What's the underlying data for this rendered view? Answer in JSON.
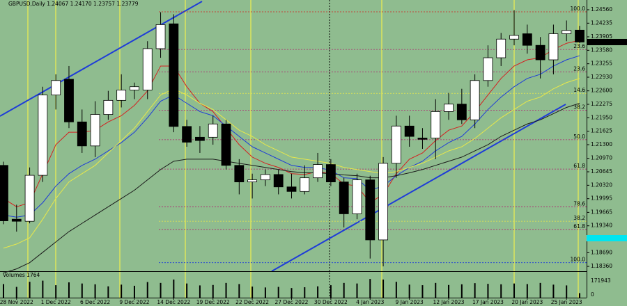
{
  "chart_data": {
    "type": "candlestick",
    "title": "GBPUSD,Daily  1.24067 1.24170 1.23757 1.23779",
    "categories": [
      null,
      "28 Nov 2022",
      null,
      null,
      "1 Dec 2022",
      null,
      null,
      "6 Dec 2022",
      null,
      null,
      "9 Dec 2022",
      null,
      null,
      "14 Dec 2022",
      null,
      null,
      "19 Dec 2022",
      null,
      null,
      "22 Dec 2022",
      null,
      null,
      "27 Dec 2022",
      null,
      null,
      "30 Dec 2022",
      null,
      null,
      "4 Jan 2023",
      null,
      null,
      "9 Jan 2023",
      null,
      null,
      "12 Jan 2023",
      null,
      null,
      "17 Jan 2023",
      null,
      null,
      "20 Jan 2023",
      null,
      null,
      "25 Jan 2023",
      null
    ],
    "open": [
      1.208,
      1.195,
      1.1945,
      1.2056,
      1.225,
      1.2288,
      1.2185,
      1.2127,
      1.2203,
      1.2237,
      1.2262,
      1.2262,
      1.2362,
      1.2422,
      1.2174,
      1.2148,
      1.2148,
      1.218,
      1.208,
      1.204,
      1.2045,
      1.2058,
      1.2028,
      1.2017,
      1.205,
      1.2082,
      1.204,
      1.1963,
      1.2045,
      1.19,
      1.2085,
      1.2175,
      1.2146,
      1.2146,
      1.221,
      1.2228,
      1.219,
      1.2285,
      1.234,
      1.2385,
      1.2398,
      1.237,
      1.2335,
      1.2398,
      1.24067
    ],
    "high": [
      1.2089,
      1.1985,
      1.2075,
      1.227,
      1.23,
      1.232,
      1.2215,
      1.2235,
      1.226,
      1.23,
      1.228,
      1.238,
      1.245,
      1.2445,
      1.219,
      1.2175,
      1.22,
      1.219,
      1.2095,
      1.206,
      1.207,
      1.207,
      1.206,
      1.208,
      1.211,
      1.2095,
      1.205,
      1.206,
      1.2055,
      1.21,
      1.22,
      1.22,
      1.217,
      1.224,
      1.2255,
      1.2265,
      1.23,
      1.237,
      1.24,
      1.2455,
      1.242,
      1.239,
      1.242,
      1.243,
      1.2417
    ],
    "low": [
      1.1938,
      1.192,
      1.194,
      1.204,
      1.2215,
      1.217,
      1.211,
      1.21,
      1.219,
      1.222,
      1.224,
      1.224,
      1.234,
      1.216,
      1.2125,
      1.211,
      1.213,
      1.207,
      1.201,
      1.2,
      1.203,
      1.201,
      1.2,
      1.201,
      1.204,
      1.203,
      1.193,
      1.195,
      1.1855,
      1.1836,
      1.205,
      1.2125,
      1.212,
      1.2095,
      1.219,
      1.218,
      1.217,
      1.227,
      1.232,
      1.237,
      1.235,
      1.229,
      1.23,
      1.238,
      1.23757
    ],
    "close": [
      1.1946,
      1.1945,
      1.2056,
      1.225,
      1.2285,
      1.2185,
      1.2127,
      1.2203,
      1.2237,
      1.2262,
      1.227,
      1.2362,
      1.242,
      1.2174,
      1.2136,
      1.214,
      1.218,
      1.208,
      1.204,
      1.2045,
      1.2058,
      1.2028,
      1.2017,
      1.205,
      1.2082,
      1.204,
      1.1963,
      1.2045,
      1.19,
      1.2085,
      1.2175,
      1.215,
      1.2143,
      1.221,
      1.2228,
      1.219,
      1.2285,
      1.234,
      1.2385,
      1.2394,
      1.237,
      1.2335,
      1.2398,
      1.2406,
      1.23779
    ],
    "up_color": "#ffffff",
    "down_color": "#000000",
    "series": [
      {
        "color": "#d42020",
        "values": [
          1.2,
          1.198,
          1.199,
          1.206,
          1.213,
          1.216,
          1.216,
          1.2165,
          1.2185,
          1.22,
          1.2225,
          1.226,
          1.232,
          1.232,
          1.227,
          1.223,
          1.221,
          1.217,
          1.213,
          1.21,
          1.2085,
          1.2075,
          1.206,
          1.2058,
          1.2065,
          1.206,
          1.2035,
          1.203,
          1.199,
          1.201,
          1.206,
          1.2095,
          1.211,
          1.214,
          1.2165,
          1.2175,
          1.221,
          1.225,
          1.229,
          1.232,
          1.2335,
          1.234,
          1.236,
          1.2375,
          1.2382
        ]
      },
      {
        "color": "#1e3cd8",
        "values": [
          1.196,
          1.1955,
          1.196,
          1.199,
          1.203,
          1.206,
          1.208,
          1.2095,
          1.2115,
          1.2135,
          1.216,
          1.2195,
          1.2235,
          1.225,
          1.223,
          1.221,
          1.22,
          1.2175,
          1.215,
          1.2125,
          1.211,
          1.2095,
          1.208,
          1.2075,
          1.2075,
          1.2068,
          1.205,
          1.2048,
          1.202,
          1.203,
          1.2055,
          1.2075,
          1.209,
          1.2115,
          1.2135,
          1.215,
          1.218,
          1.2215,
          1.2245,
          1.227,
          1.229,
          1.23,
          1.232,
          1.2335,
          1.2345
        ]
      },
      {
        "color": "#e8e84a",
        "values": [
          1.188,
          1.189,
          1.1905,
          1.195,
          1.2,
          1.204,
          1.206,
          1.208,
          1.211,
          1.214,
          1.217,
          1.221,
          1.225,
          1.2265,
          1.225,
          1.223,
          1.2215,
          1.219,
          1.2165,
          1.215,
          1.213,
          1.2115,
          1.21,
          1.2095,
          1.209,
          1.2085,
          1.2075,
          1.207,
          1.2065,
          1.206,
          1.2065,
          1.2075,
          1.2085,
          1.21,
          1.2115,
          1.2125,
          1.2145,
          1.217,
          1.2195,
          1.2215,
          1.2235,
          1.2245,
          1.2265,
          1.228,
          1.229
        ]
      },
      {
        "color": "#1a1a1a",
        "values": [
          1.182,
          1.183,
          1.1845,
          1.187,
          1.1895,
          1.192,
          1.194,
          1.196,
          1.198,
          1.2,
          1.202,
          1.2045,
          1.207,
          1.209,
          1.2095,
          1.2095,
          1.2095,
          1.209,
          1.2085,
          1.208,
          1.2075,
          1.207,
          1.2065,
          1.2062,
          1.2062,
          1.206,
          1.2057,
          1.2055,
          1.205,
          1.205,
          1.2055,
          1.2062,
          1.207,
          1.208,
          1.209,
          1.21,
          1.2115,
          1.213,
          1.215,
          1.2165,
          1.218,
          1.219,
          1.2205,
          1.222,
          1.223
        ]
      }
    ],
    "ylim": [
      1.18243,
      1.24795
    ],
    "yticks": [
      {
        "value": 1.2456,
        "label": "1.24560"
      },
      {
        "value": 1.24235,
        "label": "1.24235"
      },
      {
        "value": 1.23905,
        "label": "1.23905"
      },
      {
        "value": 1.2358,
        "label": "1.23580"
      },
      {
        "value": 1.23255,
        "label": "1.23255"
      },
      {
        "value": 1.2293,
        "label": "1.22930"
      },
      {
        "value": 1.226,
        "label": "1.22600"
      },
      {
        "value": 1.22275,
        "label": "1.22275"
      },
      {
        "value": 1.2195,
        "label": "1.21950"
      },
      {
        "value": 1.21625,
        "label": "1.21625"
      },
      {
        "value": 1.213,
        "label": "1.21300"
      },
      {
        "value": 1.2097,
        "label": "1.20970"
      },
      {
        "value": 1.20645,
        "label": "1.20645"
      },
      {
        "value": 1.2032,
        "label": "1.20320"
      },
      {
        "value": 1.19995,
        "label": "1.19995"
      },
      {
        "value": 1.19665,
        "label": "1.19665"
      },
      {
        "value": 1.1934,
        "label": "1.19340"
      },
      {
        "value": 1.1869,
        "label": "1.18690"
      },
      {
        "value": 1.1836,
        "label": "1.18360"
      }
    ],
    "current_price": {
      "value": 1.23779,
      "label": "1.23779"
    },
    "levels": [
      {
        "value": 1.2451,
        "label": "100.0",
        "color": "#d42020"
      },
      {
        "value": 1.236,
        "label": "23.6",
        "color": "#b02070"
      },
      {
        "value": 1.2306,
        "label": "23.6",
        "color": "#b02070"
      },
      {
        "value": 1.2254,
        "label": "14.6",
        "color": "#e8e84a"
      },
      {
        "value": 1.2213,
        "label": "38.2",
        "color": "#b02070"
      },
      {
        "value": 1.2142,
        "label": "50.0",
        "color": "#b02070"
      },
      {
        "value": 1.2071,
        "label": "61.8",
        "color": "#b02070"
      },
      {
        "value": 1.198,
        "label": "78.6",
        "color": "#b02070"
      },
      {
        "value": 1.1945,
        "label": "38.2",
        "color": "#e8e84a"
      },
      {
        "value": 1.1925,
        "label": "61.8",
        "color": "#b02070"
      },
      {
        "value": 1.1845,
        "label": "100.0",
        "color": "#1e3cd8"
      }
    ],
    "volume_title": "Volumes 1764",
    "volumes": [
      120000,
      95000,
      140000,
      150000,
      110000,
      135000,
      125000,
      118000,
      100000,
      115000,
      105000,
      138000,
      130000,
      160000,
      125000,
      108000,
      112000,
      130000,
      120000,
      98000,
      90000,
      95000,
      85000,
      92000,
      100000,
      110000,
      130000,
      125000,
      165000,
      160000,
      140000,
      115000,
      110000,
      130000,
      112000,
      118000,
      128000,
      122000,
      118000,
      125000,
      120000,
      130000,
      115000,
      108000,
      40000
    ],
    "vlim": [
      0,
      171943
    ],
    "vticks": [
      171943,
      0
    ]
  }
}
